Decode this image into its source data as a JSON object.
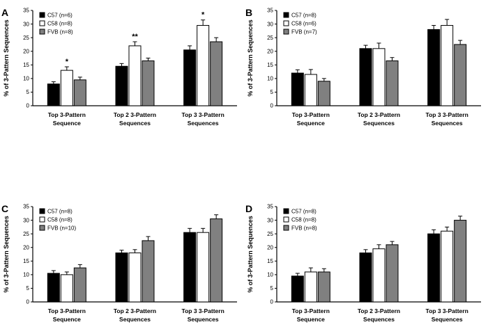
{
  "figure_background": "#ffffff",
  "bar_outline_color": "#000000",
  "chart_data": [
    {
      "type": "bar",
      "panel_label": "A",
      "ylabel": "% of 3-Pattern Sequences",
      "ylim": [
        0,
        35
      ],
      "ytick_step": 5,
      "legend_position": "top-left",
      "grid": false,
      "categories": [
        [
          "Top 3-Pattern",
          "Sequence"
        ],
        [
          "Top 2 3-Pattern",
          "Sequences"
        ],
        [
          "Top 3 3-Pattern",
          "Sequences"
        ]
      ],
      "series": [
        {
          "name": "C57 (n=6)",
          "color": "#000000",
          "values": [
            8,
            14.5,
            20.5
          ],
          "errors": [
            0.8,
            1.0,
            1.5
          ]
        },
        {
          "name": "C58 (n=8)",
          "color": "#ffffff",
          "values": [
            13,
            22,
            29.5
          ],
          "errors": [
            1.3,
            1.5,
            2.0
          ]
        },
        {
          "name": "FVB (n=8)",
          "color": "#808080",
          "values": [
            9.5,
            16.5,
            23.5
          ],
          "errors": [
            1.0,
            1.0,
            1.5
          ]
        }
      ],
      "annotations": [
        {
          "group": 0,
          "series": 1,
          "text": "*"
        },
        {
          "group": 1,
          "series": 1,
          "text": "**"
        },
        {
          "group": 2,
          "series": 1,
          "text": "*"
        }
      ]
    },
    {
      "type": "bar",
      "panel_label": "B",
      "ylabel": "% of 3-Pattern Sequences",
      "ylim": [
        0,
        35
      ],
      "ytick_step": 5,
      "legend_position": "top-left",
      "grid": false,
      "categories": [
        [
          "Top 3-Pattern",
          "Sequence"
        ],
        [
          "Top 2 3-Pattern",
          "Sequences"
        ],
        [
          "Top 3 3-Pattern",
          "Sequences"
        ]
      ],
      "series": [
        {
          "name": "C57 (n=8)",
          "color": "#000000",
          "values": [
            12,
            21,
            28
          ],
          "errors": [
            1.2,
            1.2,
            1.5
          ]
        },
        {
          "name": "C58 (n=6)",
          "color": "#ffffff",
          "values": [
            11.5,
            21,
            29.5
          ],
          "errors": [
            1.8,
            2.0,
            2.2
          ]
        },
        {
          "name": "FVB (n=7)",
          "color": "#808080",
          "values": [
            9,
            16.5,
            22.5
          ],
          "errors": [
            1.0,
            1.2,
            1.5
          ]
        }
      ],
      "annotations": []
    },
    {
      "type": "bar",
      "panel_label": "C",
      "ylabel": "% of 3-Pattern Sequences",
      "ylim": [
        0,
        35
      ],
      "ytick_step": 5,
      "legend_position": "top-left",
      "grid": false,
      "categories": [
        [
          "Top 3-Pattern",
          "Sequence"
        ],
        [
          "Top 2 3-Pattern",
          "Sequences"
        ],
        [
          "Top 3 3-Pattern",
          "Sequences"
        ]
      ],
      "series": [
        {
          "name": "C57 (n=8)",
          "color": "#000000",
          "values": [
            10.5,
            18,
            25.5
          ],
          "errors": [
            1.0,
            1.0,
            1.5
          ]
        },
        {
          "name": "C58 (n=8)",
          "color": "#ffffff",
          "values": [
            10,
            18,
            25.5
          ],
          "errors": [
            1.0,
            1.2,
            1.5
          ]
        },
        {
          "name": "FVB (n=10)",
          "color": "#808080",
          "values": [
            12.5,
            22.5,
            30.5
          ],
          "errors": [
            1.2,
            1.5,
            1.5
          ]
        }
      ],
      "annotations": []
    },
    {
      "type": "bar",
      "panel_label": "D",
      "ylabel": "% of 3-Pattern Sequences",
      "ylim": [
        0,
        35
      ],
      "ytick_step": 5,
      "legend_position": "top-left",
      "grid": false,
      "categories": [
        [
          "Top 3-Pattern",
          "Sequence"
        ],
        [
          "Top 2 3-Pattern",
          "Sequences"
        ],
        [
          "Top 3 3-Pattern",
          "Sequences"
        ]
      ],
      "series": [
        {
          "name": "C57 (n=8)",
          "color": "#000000",
          "values": [
            9.5,
            18,
            25
          ],
          "errors": [
            1.0,
            1.2,
            1.5
          ]
        },
        {
          "name": "C58 (n=8)",
          "color": "#ffffff",
          "values": [
            11,
            19.5,
            26
          ],
          "errors": [
            1.5,
            1.5,
            1.5
          ]
        },
        {
          "name": "FVB (n=8)",
          "color": "#808080",
          "values": [
            11,
            21,
            30
          ],
          "errors": [
            1.2,
            1.2,
            1.5
          ]
        }
      ],
      "annotations": []
    }
  ]
}
